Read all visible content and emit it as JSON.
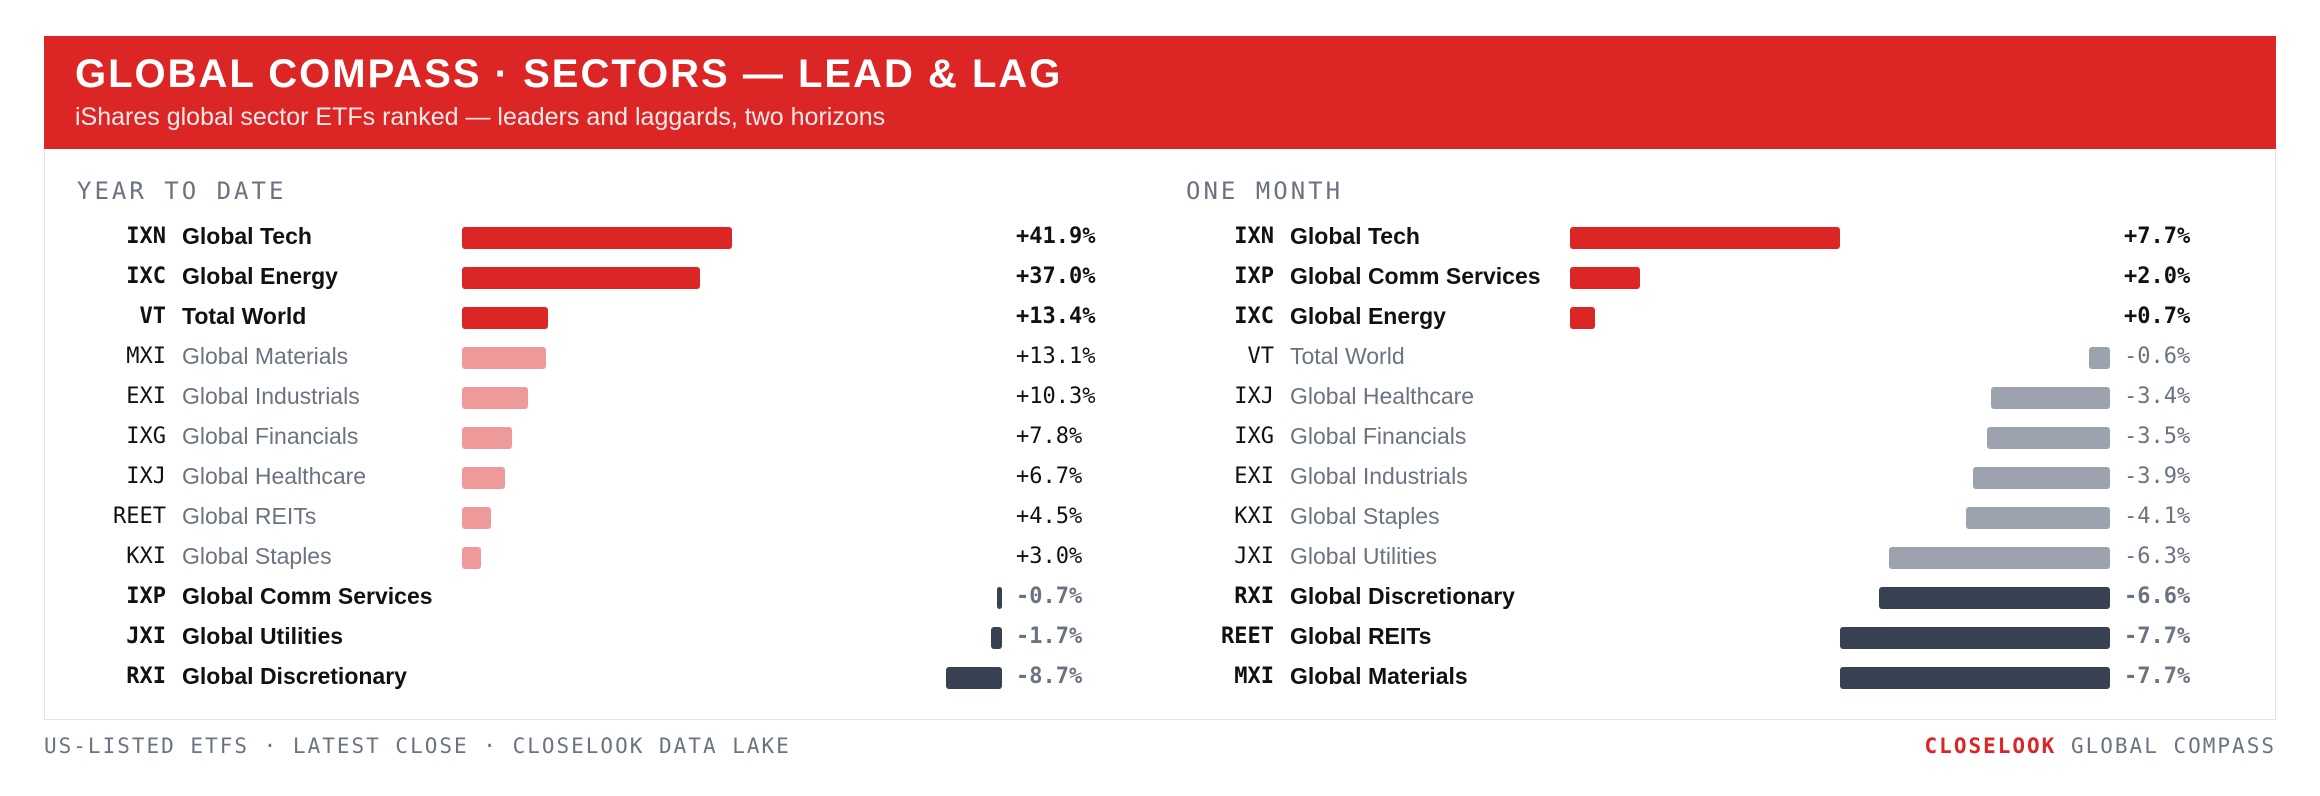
{
  "header": {
    "title": "GLOBAL COMPASS · SECTORS — LEAD & LAG",
    "subtitle": "iShares global sector ETFs ranked — leaders and laggards, two horizons"
  },
  "colors": {
    "accent": "#dc2626",
    "lead_bar": "#dc2626",
    "mid_pos_bar": "#ef9a9a",
    "mid_neg_bar": "#9ca3af",
    "lag_bar": "#374151"
  },
  "chart_data": [
    {
      "type": "bar",
      "orientation": "horizontal",
      "title": "YEAR TO DATE",
      "unit": "%",
      "rows": [
        {
          "ticker": "IXN",
          "name": "Global Tech",
          "value": 41.9,
          "label": "+41.9%",
          "group": "lead"
        },
        {
          "ticker": "IXC",
          "name": "Global Energy",
          "value": 37.0,
          "label": "+37.0%",
          "group": "lead"
        },
        {
          "ticker": "VT",
          "name": "Total World",
          "value": 13.4,
          "label": "+13.4%",
          "group": "lead"
        },
        {
          "ticker": "MXI",
          "name": "Global Materials",
          "value": 13.1,
          "label": "+13.1%",
          "group": "mid"
        },
        {
          "ticker": "EXI",
          "name": "Global Industrials",
          "value": 10.3,
          "label": "+10.3%",
          "group": "mid"
        },
        {
          "ticker": "IXG",
          "name": "Global Financials",
          "value": 7.8,
          "label": "+7.8%",
          "group": "mid"
        },
        {
          "ticker": "IXJ",
          "name": "Global Healthcare",
          "value": 6.7,
          "label": "+6.7%",
          "group": "mid"
        },
        {
          "ticker": "REET",
          "name": "Global REITs",
          "value": 4.5,
          "label": "+4.5%",
          "group": "mid"
        },
        {
          "ticker": "KXI",
          "name": "Global Staples",
          "value": 3.0,
          "label": "+3.0%",
          "group": "mid"
        },
        {
          "ticker": "IXP",
          "name": "Global Comm Services",
          "value": -0.7,
          "label": "-0.7%",
          "group": "lag"
        },
        {
          "ticker": "JXI",
          "name": "Global Utilities",
          "value": -1.7,
          "label": "-1.7%",
          "group": "lag"
        },
        {
          "ticker": "RXI",
          "name": "Global Discretionary",
          "value": -8.7,
          "label": "-8.7%",
          "group": "lag"
        }
      ]
    },
    {
      "type": "bar",
      "orientation": "horizontal",
      "title": "ONE MONTH",
      "unit": "%",
      "rows": [
        {
          "ticker": "IXN",
          "name": "Global Tech",
          "value": 7.7,
          "label": "+7.7%",
          "group": "lead"
        },
        {
          "ticker": "IXP",
          "name": "Global Comm Services",
          "value": 2.0,
          "label": "+2.0%",
          "group": "lead"
        },
        {
          "ticker": "IXC",
          "name": "Global Energy",
          "value": 0.7,
          "label": "+0.7%",
          "group": "lead"
        },
        {
          "ticker": "VT",
          "name": "Total World",
          "value": -0.6,
          "label": "-0.6%",
          "group": "midneg"
        },
        {
          "ticker": "IXJ",
          "name": "Global Healthcare",
          "value": -3.4,
          "label": "-3.4%",
          "group": "midneg"
        },
        {
          "ticker": "IXG",
          "name": "Global Financials",
          "value": -3.5,
          "label": "-3.5%",
          "group": "midneg"
        },
        {
          "ticker": "EXI",
          "name": "Global Industrials",
          "value": -3.9,
          "label": "-3.9%",
          "group": "midneg"
        },
        {
          "ticker": "KXI",
          "name": "Global Staples",
          "value": -4.1,
          "label": "-4.1%",
          "group": "midneg"
        },
        {
          "ticker": "JXI",
          "name": "Global Utilities",
          "value": -6.3,
          "label": "-6.3%",
          "group": "midneg"
        },
        {
          "ticker": "RXI",
          "name": "Global Discretionary",
          "value": -6.6,
          "label": "-6.6%",
          "group": "lag"
        },
        {
          "ticker": "REET",
          "name": "Global REITs",
          "value": -7.7,
          "label": "-7.7%",
          "group": "lag"
        },
        {
          "ticker": "MXI",
          "name": "Global Materials",
          "value": -7.7,
          "label": "-7.7%",
          "group": "lag"
        }
      ]
    }
  ],
  "footer": {
    "left": "US-LISTED ETFS · LATEST CLOSE · CLOSELOOK DATA LAKE",
    "brand": "CLOSELOOK",
    "right": "GLOBAL COMPASS"
  }
}
